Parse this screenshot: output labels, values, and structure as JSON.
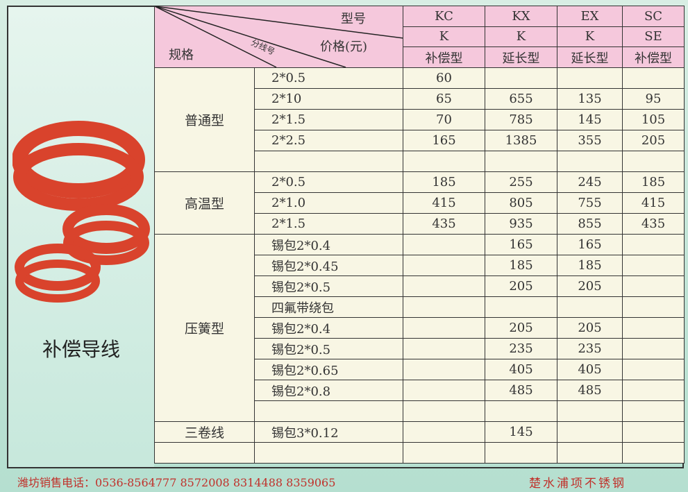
{
  "title": "补偿导线",
  "header": {
    "model_label": "型号",
    "price_label": "价格(元)",
    "spec_label": "规格",
    "branch_label": "分线号",
    "columns": [
      {
        "code": "KC",
        "type": "K",
        "name": "补偿型"
      },
      {
        "code": "KX",
        "type": "K",
        "name": "延长型"
      },
      {
        "code": "EX",
        "type": "K",
        "name": "延长型"
      },
      {
        "code": "SC",
        "type": "SE",
        "name": "补偿型"
      }
    ]
  },
  "groups": [
    {
      "name": "普通型",
      "rows": [
        [
          "2*0.5",
          "60",
          "",
          "",
          ""
        ],
        [
          "2*10",
          "65",
          "655",
          "135",
          "95"
        ],
        [
          "2*1.5",
          "70",
          "785",
          "145",
          "105"
        ],
        [
          "2*2.5",
          "165",
          "1385",
          "355",
          "205"
        ],
        [
          "",
          "",
          "",
          "",
          ""
        ]
      ]
    },
    {
      "name": "高温型",
      "rows": [
        [
          "2*0.5",
          "185",
          "255",
          "245",
          "185"
        ],
        [
          "2*1.0",
          "415",
          "805",
          "755",
          "415"
        ],
        [
          "2*1.5",
          "435",
          "935",
          "855",
          "435"
        ]
      ]
    },
    {
      "name": "压簧型",
      "rows": [
        [
          "锡包2*0.4",
          "",
          "165",
          "165",
          ""
        ],
        [
          "锡包2*0.45",
          "",
          "185",
          "185",
          ""
        ],
        [
          "锡包2*0.5",
          "",
          "205",
          "205",
          ""
        ],
        [
          "四氟带绕包",
          "",
          "",
          "",
          ""
        ],
        [
          "锡包2*0.4",
          "",
          "205",
          "205",
          ""
        ],
        [
          "锡包2*0.5",
          "",
          "235",
          "235",
          ""
        ],
        [
          "锡包2*0.65",
          "",
          "405",
          "405",
          ""
        ],
        [
          "锡包2*0.8",
          "",
          "485",
          "485",
          ""
        ],
        [
          "",
          "",
          "",
          "",
          ""
        ]
      ]
    },
    {
      "name": "三卷线",
      "rows": [
        [
          "锡包3*0.12",
          "",
          "145",
          "",
          ""
        ]
      ]
    },
    {
      "name": "",
      "rows": [
        [
          "",
          "",
          "",
          "",
          ""
        ]
      ]
    }
  ],
  "footer": {
    "phone": "潍坊销售电话：0536-8564777  8572008  8314488   8359065",
    "company": "楚水浦项不锈钢"
  }
}
